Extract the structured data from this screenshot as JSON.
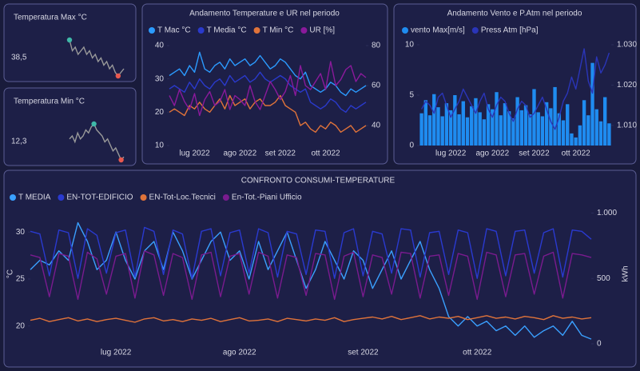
{
  "cards": [
    {
      "title": "Temperatura Max °C",
      "value": "38,5",
      "sparkline": [
        34,
        31,
        32,
        30,
        31,
        32,
        30,
        31,
        29,
        30,
        28,
        29,
        27,
        28,
        26,
        27,
        25,
        24,
        25,
        26
      ]
    },
    {
      "title": "Temperatura Min °C",
      "value": "12,3",
      "sparkline": [
        20,
        21,
        19,
        22,
        20,
        21,
        23,
        22,
        24,
        25,
        23,
        22,
        21,
        19,
        20,
        18,
        16,
        17,
        15,
        13,
        14
      ]
    }
  ],
  "chart_data": [
    {
      "type": "line",
      "title": "Andamento Temperature e UR nel periodo",
      "categories": [
        null,
        null,
        null,
        null,
        null,
        "lug 2022",
        null,
        null,
        null,
        null,
        null,
        null,
        null,
        null,
        "ago 2022",
        null,
        null,
        null,
        null,
        null,
        null,
        null,
        "set 2022",
        null,
        null,
        null,
        null,
        null,
        null,
        null,
        null,
        "ott 2022",
        null,
        null,
        null,
        null,
        null,
        null,
        null,
        null
      ],
      "ylim": [
        10,
        40
      ],
      "yticks": [
        10,
        20,
        30,
        40
      ],
      "y2lim": [
        30,
        80
      ],
      "y2ticks": [
        40,
        60,
        80
      ],
      "grid": false,
      "series": [
        {
          "name": "T Mac °C",
          "color": "#2b9bff",
          "values": [
            31,
            32,
            33,
            31,
            34,
            32,
            38,
            33,
            32,
            34,
            35,
            33,
            36,
            34,
            35,
            36,
            34,
            35,
            37,
            35,
            33,
            34,
            36,
            35,
            33,
            31,
            30,
            32,
            28,
            27,
            26,
            27,
            29,
            28,
            26,
            25,
            27,
            26,
            27,
            28
          ]
        },
        {
          "name": "T Media °C",
          "color": "#2a3acc",
          "values": [
            27,
            28,
            27,
            26,
            29,
            27,
            30,
            28,
            27,
            29,
            30,
            28,
            31,
            29,
            30,
            31,
            29,
            30,
            32,
            30,
            29,
            30,
            31,
            30,
            28,
            27,
            26,
            27,
            23,
            22,
            21,
            22,
            24,
            23,
            21,
            20,
            22,
            21,
            22,
            23
          ]
        },
        {
          "name": "T Min °C",
          "color": "#e0733a",
          "values": [
            20,
            21,
            20,
            19,
            22,
            21,
            23,
            21,
            20,
            22,
            24,
            21,
            25,
            22,
            23,
            24,
            21,
            23,
            24,
            22,
            22,
            23,
            25,
            22,
            21,
            20,
            16,
            17,
            15,
            14,
            16,
            15,
            17,
            16,
            14,
            15,
            16,
            14,
            15,
            16
          ]
        },
        {
          "name": "UR [%]",
          "color": "#8a1a9b",
          "axis": "y2",
          "values": [
            55,
            50,
            58,
            52,
            48,
            56,
            45,
            53,
            57,
            50,
            52,
            58,
            48,
            55,
            53,
            50,
            60,
            52,
            48,
            55,
            62,
            58,
            53,
            57,
            65,
            55,
            70,
            60,
            58,
            62,
            66,
            58,
            72,
            60,
            63,
            68,
            70,
            62,
            66,
            64
          ]
        }
      ]
    },
    {
      "type": "combo",
      "title": "Andamento Vento e P.Atm nel periodo",
      "categories": [
        null,
        null,
        null,
        null,
        null,
        null,
        null,
        "lug 2022",
        null,
        null,
        null,
        null,
        null,
        null,
        null,
        null,
        null,
        "ago 2022",
        null,
        null,
        null,
        null,
        null,
        null,
        null,
        null,
        null,
        "set 2022",
        null,
        null,
        null,
        null,
        null,
        null,
        null,
        null,
        null,
        "ott 2022",
        null,
        null,
        null,
        null,
        null,
        null,
        null,
        null
      ],
      "ylim": [
        0,
        10
      ],
      "yticks": [
        0,
        5,
        10
      ],
      "y2lim": [
        1005,
        1030
      ],
      "y2ticks": [
        {
          "value": 1010,
          "label": "1.010"
        },
        {
          "value": 1020,
          "label": "1.020"
        },
        {
          "value": 1030,
          "label": "1.030"
        }
      ],
      "grid": false,
      "series": [
        {
          "name": "vento Max[m/s]",
          "type": "bar",
          "color": "#1f8cf0",
          "values": [
            3.2,
            4.5,
            3.0,
            5.1,
            3.8,
            2.9,
            4.2,
            3.5,
            5.0,
            3.1,
            4.4,
            2.8,
            3.9,
            4.7,
            3.3,
            2.6,
            4.1,
            3.6,
            5.3,
            3.0,
            4.2,
            3.4,
            2.7,
            4.8,
            3.5,
            4.0,
            3.1,
            5.6,
            3.3,
            2.9,
            4.3,
            3.7,
            5.8,
            3.2,
            2.5,
            4.1,
            1.2,
            0.8,
            2.0,
            4.5,
            3.0,
            8.2,
            3.6,
            2.4,
            4.8,
            2.2
          ]
        },
        {
          "name": "Press Atm [hPa]",
          "type": "line",
          "color": "#2a35b8",
          "axis": "y2",
          "values": [
            1014,
            1016,
            1015,
            1013,
            1017,
            1018,
            1015,
            1012,
            1014,
            1016,
            1019,
            1017,
            1015,
            1013,
            1016,
            1018,
            1014,
            1012,
            1015,
            1017,
            1016,
            1013,
            1011,
            1014,
            1016,
            1015,
            1012,
            1013,
            1015,
            1017,
            1014,
            1011,
            1009,
            1012,
            1016,
            1018,
            1022,
            1019,
            1024,
            1029,
            1021,
            1018,
            1027,
            1023,
            1025,
            1028
          ]
        }
      ]
    },
    {
      "type": "line",
      "title": "CONFRONTO CONSUMI-TEMPERATURE",
      "y_label": "°C",
      "y2_label": "kWh",
      "categories": [
        null,
        null,
        null,
        null,
        null,
        null,
        null,
        null,
        null,
        "lug 2022",
        null,
        null,
        null,
        null,
        null,
        null,
        null,
        null,
        null,
        null,
        null,
        null,
        "ago 2022",
        null,
        null,
        null,
        null,
        null,
        null,
        null,
        null,
        null,
        null,
        null,
        null,
        "set 2022",
        null,
        null,
        null,
        null,
        null,
        null,
        null,
        null,
        null,
        null,
        null,
        "ott 2022",
        null,
        null,
        null,
        null,
        null,
        null,
        null,
        null,
        null,
        null,
        null,
        null
      ],
      "ylim": [
        18.1,
        33
      ],
      "yticks": [
        20,
        25,
        30
      ],
      "y2lim": [
        0,
        1070
      ],
      "y2ticks": [
        0,
        500,
        {
          "value": 1000,
          "label": "1.000"
        }
      ],
      "grid": false,
      "series": [
        {
          "name": "T MEDIA",
          "color": "#3aa0ff",
          "values": [
            26,
            27,
            26.5,
            28,
            27,
            31,
            29,
            26,
            27,
            30,
            27,
            25,
            28,
            29,
            26,
            30,
            28,
            25,
            27,
            29,
            30,
            27,
            28,
            25,
            29,
            26,
            28,
            30,
            27,
            24,
            26,
            29,
            27,
            25,
            28,
            27,
            24,
            26,
            28,
            25,
            27,
            29,
            26,
            24,
            21,
            20,
            21,
            20,
            20.5,
            19.5,
            20,
            19,
            20,
            18.8,
            19.5,
            20,
            19,
            20.5,
            19,
            18.6
          ]
        },
        {
          "name": "EN-TOT-EDIFICIO",
          "color": "#2a3ad0",
          "axis": "y2",
          "values": [
            860,
            840,
            520,
            870,
            850,
            500,
            880,
            830,
            540,
            850,
            870,
            510,
            890,
            860,
            530,
            870,
            840,
            500,
            860,
            880,
            520,
            850,
            870,
            540,
            880,
            850,
            510,
            860,
            840,
            530,
            870,
            860,
            500,
            850,
            880,
            520,
            860,
            840,
            540,
            880,
            870,
            510,
            850,
            860,
            530,
            870,
            850,
            500,
            880,
            860,
            520,
            860,
            870,
            540,
            850,
            880,
            510,
            870,
            860,
            800
          ]
        },
        {
          "name": "EN-Tot-Loc.Tecnici",
          "color": "#e0733a",
          "axis": "y2",
          "values": [
            180,
            195,
            170,
            185,
            200,
            175,
            190,
            170,
            185,
            195,
            180,
            165,
            190,
            200,
            175,
            185,
            170,
            190,
            180,
            195,
            170,
            185,
            200,
            175,
            180,
            190,
            170,
            195,
            185,
            175,
            190,
            180,
            200,
            170,
            185,
            195,
            205,
            190,
            210,
            185,
            200,
            215,
            190,
            205,
            195,
            210,
            185,
            200,
            215,
            195,
            205,
            190,
            210,
            200,
            185,
            215,
            195,
            205,
            190,
            200
          ]
        },
        {
          "name": "En-Tot.-Piani Ufficio",
          "color": "#7a1b8f",
          "axis": "y2",
          "values": [
            680,
            660,
            360,
            690,
            670,
            340,
            700,
            650,
            380,
            670,
            690,
            350,
            710,
            680,
            370,
            690,
            660,
            340,
            680,
            700,
            360,
            670,
            690,
            380,
            700,
            670,
            350,
            680,
            660,
            370,
            690,
            680,
            340,
            670,
            700,
            360,
            680,
            660,
            380,
            700,
            690,
            350,
            670,
            680,
            370,
            690,
            670,
            340,
            700,
            680,
            360,
            680,
            690,
            380,
            670,
            700,
            350,
            690,
            680,
            660
          ]
        }
      ]
    }
  ]
}
